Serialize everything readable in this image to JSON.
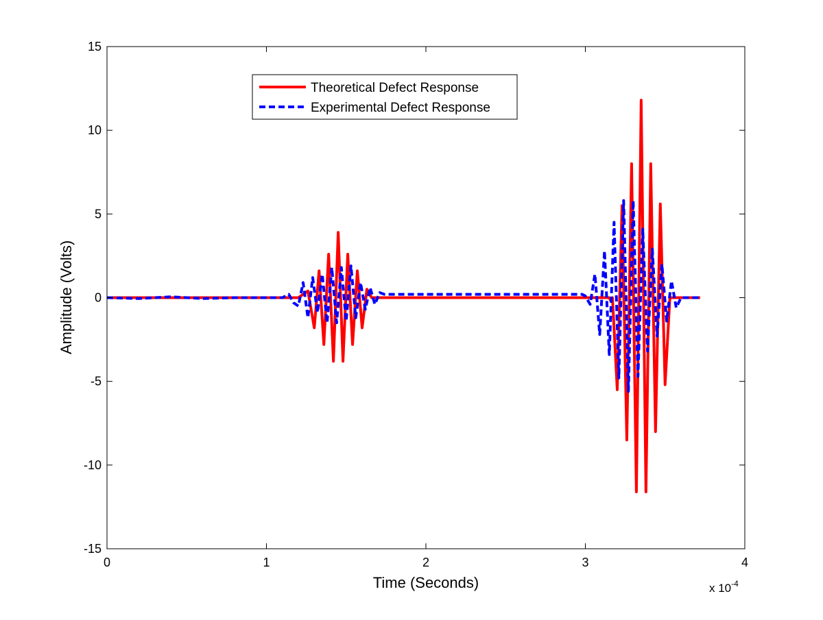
{
  "chart_data": {
    "type": "line",
    "title": "",
    "xlabel": "Time (Seconds)",
    "ylabel": "Amplitude (Volts)",
    "x_scale_note": "x 10",
    "x_scale_exponent": "-4",
    "xlim": [
      0,
      4
    ],
    "ylim": [
      -15,
      15
    ],
    "x_ticks": [
      0,
      1,
      2,
      3,
      4
    ],
    "x_tick_labels": [
      "0",
      "1",
      "2",
      "3",
      "4"
    ],
    "y_ticks": [
      -15,
      -10,
      -5,
      0,
      5,
      10,
      15
    ],
    "y_tick_labels": [
      "-15",
      "-10",
      "-5",
      "0",
      "5",
      "10",
      "15"
    ],
    "grid": false,
    "legend_position": "top-center",
    "series": [
      {
        "name": "Theoretical Defect Response",
        "color": "#ff0000",
        "style": "solid",
        "x": [
          0,
          1.1,
          1.2,
          1.26,
          1.3,
          1.33,
          1.36,
          1.39,
          1.42,
          1.45,
          1.48,
          1.51,
          1.54,
          1.57,
          1.6,
          1.63,
          1.66,
          1.69,
          1.72,
          1.75,
          1.78,
          1.81,
          1.84,
          1.86,
          1.87,
          3.15,
          3.16,
          3.17,
          3.2,
          3.23,
          3.26,
          3.29,
          3.32,
          3.35,
          3.38,
          3.41,
          3.44,
          3.47,
          3.5,
          3.53,
          3.56,
          3.59,
          3.62,
          3.65,
          3.68,
          3.71,
          3.72
        ],
        "y": [
          0,
          0,
          0,
          0.4,
          -1.8,
          1.6,
          -2.8,
          2.6,
          -3.8,
          3.9,
          -3.8,
          2.6,
          -2.8,
          1.6,
          -1.8,
          0.5,
          0,
          0,
          0,
          0,
          0,
          0,
          0,
          0,
          0,
          0,
          -0.2,
          0,
          -5.5,
          5.5,
          -8.5,
          8,
          -11.6,
          11.8,
          -11.6,
          8,
          -8,
          5.6,
          -5.2,
          0,
          0,
          0,
          0,
          0,
          0,
          0,
          0
        ]
      },
      {
        "name": "Experimental Defect Response",
        "color": "#0000ff",
        "style": "dashed",
        "x": [
          0,
          0.2,
          0.4,
          0.6,
          0.8,
          1.0,
          1.1,
          1.14,
          1.17,
          1.2,
          1.23,
          1.26,
          1.29,
          1.32,
          1.35,
          1.38,
          1.41,
          1.44,
          1.47,
          1.5,
          1.53,
          1.56,
          1.59,
          1.62,
          1.65,
          1.68,
          1.71,
          1.74,
          1.77,
          1.8,
          1.83,
          1.86,
          1.9,
          2.0,
          2.5,
          2.98,
          3.0,
          3.03,
          3.06,
          3.09,
          3.12,
          3.15,
          3.18,
          3.21,
          3.24,
          3.27,
          3.3,
          3.33,
          3.36,
          3.39,
          3.42,
          3.45,
          3.48,
          3.51,
          3.54,
          3.57,
          3.6,
          3.63,
          3.66,
          3.69,
          3.72
        ],
        "y": [
          0,
          -0.05,
          0.05,
          -0.05,
          0,
          0,
          0,
          0.2,
          -0.3,
          -0.5,
          0.9,
          -1.2,
          1.2,
          -0.9,
          1.4,
          -1.5,
          1.8,
          -1.5,
          1.8,
          -1.4,
          1.9,
          -1.2,
          0.9,
          -0.7,
          0.6,
          -0.4,
          0.3,
          0.2,
          0.2,
          0.2,
          0.2,
          0.2,
          0.2,
          0.2,
          0.2,
          0.2,
          0.1,
          -0.4,
          1.4,
          -2.2,
          2.8,
          -3.4,
          4.5,
          -4.8,
          5.8,
          -5.6,
          5.8,
          -4.7,
          4.1,
          -3.2,
          2.9,
          -2.3,
          2.0,
          -1.4,
          1.0,
          -0.6,
          0,
          0,
          0,
          0,
          0
        ]
      }
    ]
  }
}
